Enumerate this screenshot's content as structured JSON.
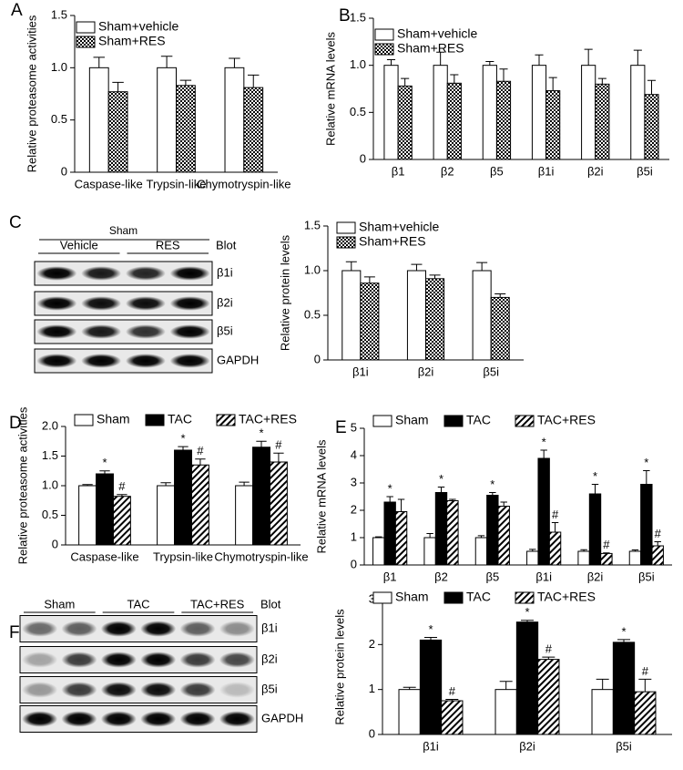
{
  "chart_data": [
    {
      "type": "bar",
      "label": "A",
      "ylabel": "Relative proteasome activities",
      "categories": [
        "Caspase-like",
        "Trypsin-like",
        "Chymotryspin-like"
      ],
      "series": [
        {
          "name": "Sham+vehicle",
          "color": "#ffffff",
          "values": [
            1.0,
            1.0,
            1.0
          ],
          "errors": [
            0.1,
            0.11,
            0.09
          ]
        },
        {
          "name": "Sham+RES",
          "color": "#000000",
          "pattern": "checker",
          "values": [
            0.77,
            0.83,
            0.81
          ],
          "errors": [
            0.09,
            0.05,
            0.12
          ]
        }
      ],
      "ylim": [
        0,
        1.5
      ],
      "yticks": [
        0,
        0.5,
        {
          "value": 1,
          "label": "1.0"
        },
        1.5
      ],
      "legend": "top-left"
    },
    {
      "type": "bar",
      "label": "B",
      "ylabel": "Relative mRNA levels",
      "categories": [
        "β1",
        "β2",
        "β5",
        "β1i",
        "β2i",
        "β5i"
      ],
      "series": [
        {
          "name": "Sham+vehicle",
          "color": "#ffffff",
          "values": [
            1.0,
            1.0,
            1.0,
            1.0,
            1.0,
            1.0
          ],
          "errors": [
            0.06,
            0.14,
            0.04,
            0.11,
            0.17,
            0.16
          ]
        },
        {
          "name": "Sham+RES",
          "color": "#000000",
          "pattern": "checker",
          "values": [
            0.78,
            0.81,
            0.83,
            0.73,
            0.8,
            0.69
          ],
          "errors": [
            0.08,
            0.09,
            0.13,
            0.14,
            0.06,
            0.15
          ]
        }
      ],
      "ylim": [
        0,
        1.5
      ],
      "yticks": [
        0,
        0.5,
        {
          "value": 1,
          "label": "1.0"
        },
        1.5
      ],
      "legend": "top-left"
    },
    {
      "type": "bar",
      "ylabel": "Relative protein levels",
      "categories": [
        "β1i",
        "β2i",
        "β5i"
      ],
      "series": [
        {
          "name": "Sham+vehicle",
          "color": "#ffffff",
          "values": [
            1.0,
            1.0,
            1.0
          ],
          "errors": [
            0.1,
            0.07,
            0.09
          ]
        },
        {
          "name": "Sham+RES",
          "color": "#000000",
          "pattern": "checker",
          "values": [
            0.86,
            0.91,
            0.7
          ],
          "errors": [
            0.07,
            0.04,
            0.04
          ]
        }
      ],
      "ylim": [
        0,
        1.5
      ],
      "yticks": [
        0,
        0.5,
        {
          "value": 1,
          "label": "1.0"
        },
        1.5
      ],
      "legend": "top-left"
    },
    {
      "type": "bar",
      "label": "D",
      "ylabel": "Relative proteasome activities",
      "categories": [
        "Caspase-like",
        "Trypsin-like",
        "Chymotryspin-like"
      ],
      "series": [
        {
          "name": "Sham",
          "color": "#ffffff",
          "values": [
            1.0,
            1.0,
            1.0
          ],
          "errors": [
            0.02,
            0.05,
            0.06
          ]
        },
        {
          "name": "TAC",
          "color": "#000000",
          "values": [
            1.2,
            1.6,
            1.65
          ],
          "errors": [
            0.05,
            0.06,
            0.1
          ],
          "markers": [
            "*",
            "*",
            "*"
          ]
        },
        {
          "name": "TAC+RES",
          "color": "#000000",
          "pattern": "hatch",
          "values": [
            0.82,
            1.35,
            1.4
          ],
          "errors": [
            0.03,
            0.1,
            0.15
          ],
          "markers": [
            "#",
            "#",
            "#"
          ]
        }
      ],
      "ylim": [
        0,
        2
      ],
      "yticks": [
        0,
        0.5,
        {
          "value": 1,
          "label": "1.0"
        },
        1.5,
        {
          "value": 2,
          "label": "2.0"
        }
      ],
      "legend": "top"
    },
    {
      "type": "bar",
      "label": "E",
      "ylabel": "Relative mRNA levels",
      "categories": [
        "β1",
        "β2",
        "β5",
        "β1i",
        "β2i",
        "β5i"
      ],
      "series": [
        {
          "name": "Sham",
          "color": "#ffffff",
          "values": [
            1.0,
            1.0,
            1.0,
            0.5,
            0.5,
            0.5
          ],
          "errors": [
            0.03,
            0.15,
            0.07,
            0.07,
            0.06,
            0.05
          ]
        },
        {
          "name": "TAC",
          "color": "#000000",
          "values": [
            2.3,
            2.65,
            2.55,
            3.9,
            2.6,
            2.95
          ],
          "errors": [
            0.2,
            0.2,
            0.1,
            0.3,
            0.35,
            0.5
          ],
          "markers": [
            "*",
            "*",
            "*",
            "*",
            "*",
            "*"
          ]
        },
        {
          "name": "TAC+RES",
          "color": "#000000",
          "pattern": "hatch",
          "values": [
            1.95,
            2.35,
            2.15,
            1.2,
            0.42,
            0.7
          ],
          "errors": [
            0.45,
            0.05,
            0.15,
            0.35,
            0.02,
            0.15
          ],
          "markers": [
            null,
            null,
            null,
            "#",
            "#",
            "#"
          ]
        }
      ],
      "ylim": [
        0,
        5
      ],
      "yticks": [
        0,
        1,
        2,
        3,
        4,
        5
      ],
      "legend": "top"
    },
    {
      "type": "bar",
      "ylabel": "Relative protein levels",
      "categories": [
        "β1i",
        "β2i",
        "β5i"
      ],
      "series": [
        {
          "name": "Sham",
          "color": "#ffffff",
          "values": [
            1.0,
            1.0,
            1.0
          ],
          "errors": [
            0.05,
            0.18,
            0.23
          ]
        },
        {
          "name": "TAC",
          "color": "#000000",
          "values": [
            2.1,
            2.5,
            2.05
          ],
          "errors": [
            0.06,
            0.04,
            0.06
          ],
          "markers": [
            "*",
            "*",
            "*"
          ]
        },
        {
          "name": "TAC+RES",
          "color": "#000000",
          "pattern": "hatch",
          "values": [
            0.75,
            1.67,
            0.95
          ],
          "errors": [
            0.03,
            0.05,
            0.28
          ],
          "markers": [
            "#",
            "#",
            "#"
          ]
        }
      ],
      "ylim": [
        0,
        3
      ],
      "yticks": [
        0,
        1,
        2,
        3
      ],
      "legend": "top"
    }
  ],
  "blots": [
    {
      "label": "C",
      "title": "Sham",
      "groups": [
        "Vehicle",
        "RES"
      ],
      "header": "Blot",
      "rows": [
        "β1i",
        "β2i",
        "β5i",
        "GAPDH"
      ]
    },
    {
      "label": "F",
      "groups": [
        "Sham",
        "TAC",
        "TAC+RES"
      ],
      "header": "Blot",
      "rows": [
        "β1i",
        "β2i",
        "β5i",
        "GAPDH"
      ]
    }
  ]
}
